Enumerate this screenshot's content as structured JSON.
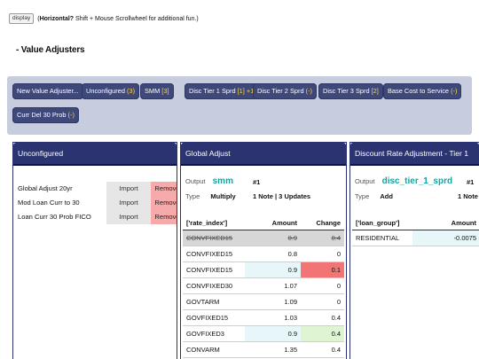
{
  "topline": {
    "display_label": "display",
    "text_bold": "Horizontal?",
    "text_rest": " Shift + Mouse Scrollwheel for additional fun.)",
    "text_open": "("
  },
  "section_title": "- Value Adjusters",
  "buttons": [
    {
      "label": "New Value Adjuster...",
      "badge": ""
    },
    {
      "label": "Unconfigured ",
      "badge": "(3)"
    },
    {
      "label": "SMM ",
      "badge": "[3]"
    },
    {
      "label": "Disc Tier 1 Sprd ",
      "badge": "[1] +1"
    },
    {
      "label": "Disc Tier 2 Sprd ",
      "badge": "(-)"
    },
    {
      "label": "Disc Tier 3 Sprd ",
      "badge": "[2]"
    },
    {
      "label": "Base Cost to Service ",
      "badge": "(-)"
    },
    {
      "label": "Curr Del 30 Prob ",
      "badge": "(-)"
    }
  ],
  "unconfigured": {
    "title": "Unconfigured",
    "import_label": "Import",
    "remove_label": "Remove",
    "items": [
      "Global Adjust 20yr",
      "Mod Loan Curr to 30",
      "Loan Curr 30 Prob FICO"
    ]
  },
  "global_adjust": {
    "title": "Global Adjust",
    "output_label": "Output",
    "output_value": "smm",
    "id": "#1",
    "type_label": "Type",
    "type_value": "Multiply",
    "notes": "1 Note | 3 Updates",
    "headers": [
      "['rate_index']",
      "Amount",
      "Change"
    ],
    "rows": [
      {
        "name": "CONVFIXED15",
        "amount": "0.9",
        "change": "0.4",
        "state": "struck"
      },
      {
        "name": "CONVFIXED15",
        "amount": "0.8",
        "change": "0",
        "state": ""
      },
      {
        "name": "CONVFIXED15",
        "amount": "0.9",
        "change": "0.1",
        "state": "blue-red"
      },
      {
        "name": "CONVFIXED30",
        "amount": "1.07",
        "change": "0",
        "state": ""
      },
      {
        "name": "GOVTARM",
        "amount": "1.09",
        "change": "0",
        "state": ""
      },
      {
        "name": "GOVFIXED15",
        "amount": "1.03",
        "change": "0.4",
        "state": ""
      },
      {
        "name": "GOVFIXED3",
        "amount": "0.9",
        "change": "0.4",
        "state": "blue-green"
      },
      {
        "name": "CONVARM",
        "amount": "1.35",
        "change": "0.4",
        "state": ""
      }
    ]
  },
  "discount": {
    "title": "Discount Rate Adjustment - Tier 1",
    "output_label": "Output",
    "output_value": "disc_tier_1_sprd",
    "id": "#1",
    "type_label": "Type",
    "type_value": "Add",
    "notes": "1 Note",
    "headers": [
      "['loan_group']",
      "Amount"
    ],
    "rows": [
      {
        "name": "RESIDENTIAL",
        "amount": "-0.0075"
      }
    ]
  }
}
